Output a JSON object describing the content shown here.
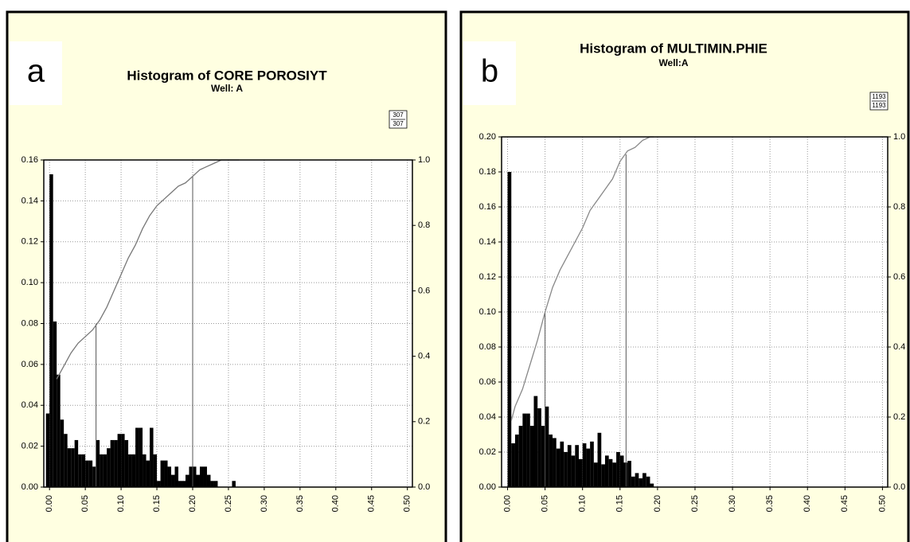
{
  "chart_data": [
    {
      "type": "histogram",
      "panel_label": "a",
      "title": "Histogram of CORE POROSIYT",
      "subtitle": "Well: A",
      "count_labels": [
        "307",
        "307"
      ],
      "bins": [
        -0.005,
        0,
        0.005,
        0.01,
        0.015,
        0.02,
        0.025,
        0.03,
        0.035,
        0.04,
        0.045,
        0.05,
        0.055,
        0.06,
        0.065,
        0.07,
        0.075,
        0.08,
        0.085,
        0.09,
        0.095,
        0.1,
        0.105,
        0.11,
        0.115,
        0.12,
        0.125,
        0.13,
        0.135,
        0.14,
        0.145,
        0.15,
        0.155,
        0.16,
        0.165,
        0.17,
        0.175,
        0.18,
        0.185,
        0.19,
        0.195,
        0.2,
        0.205,
        0.21,
        0.215,
        0.22,
        0.225,
        0.23,
        0.235,
        0.24,
        0.245,
        0.25,
        0.255,
        0.26,
        0.265
      ],
      "counts": [
        0.036,
        0.153,
        0.081,
        0.055,
        0.033,
        0.026,
        0.019,
        0.019,
        0.023,
        0.016,
        0.016,
        0.013,
        0.013,
        0.01,
        0.023,
        0.016,
        0.016,
        0.019,
        0.023,
        0.023,
        0.026,
        0.026,
        0.023,
        0.016,
        0.016,
        0.029,
        0.029,
        0.016,
        0.013,
        0.029,
        0.016,
        0.003,
        0.013,
        0.013,
        0.01,
        0.006,
        0.01,
        0.003,
        0.003,
        0.006,
        0.01,
        0.01,
        0.006,
        0.01,
        0.01,
        0.006,
        0.003,
        0.003,
        0,
        0,
        0,
        0,
        0.003,
        0
      ],
      "color": "#000000",
      "xlim": [
        -0.008,
        0.507
      ],
      "xticks": [
        {
          "value": 0,
          "label": "0.00"
        },
        0.05,
        {
          "value": 0.1,
          "label": "0.10"
        },
        0.15,
        {
          "value": 0.2,
          "label": "0.20"
        },
        0.25,
        {
          "value": 0.3,
          "label": "0.30"
        },
        0.35,
        {
          "value": 0.4,
          "label": "0.40"
        },
        0.45,
        {
          "value": 0.5,
          "label": "0.50"
        }
      ],
      "ylim": [
        0,
        0.16
      ],
      "yticks": [
        {
          "value": 0,
          "label": "0.00"
        },
        0.02,
        0.04,
        0.06,
        0.08,
        {
          "value": 0.1,
          "label": "0.10"
        },
        0.12,
        0.14,
        0.16
      ],
      "y2lim": [
        0,
        1
      ],
      "y2ticks": [
        {
          "value": 0,
          "label": "0.0"
        },
        0.2,
        0.4,
        0.6,
        0.8,
        {
          "value": 1,
          "label": "1.0"
        }
      ],
      "grid": true,
      "cumulative": {
        "axis": "y2",
        "color": "#777777",
        "x": [
          0.01,
          0.02,
          0.03,
          0.04,
          0.05,
          0.06,
          0.07,
          0.08,
          0.09,
          0.1,
          0.11,
          0.12,
          0.13,
          0.14,
          0.15,
          0.16,
          0.17,
          0.18,
          0.19,
          0.2,
          0.21,
          0.22,
          0.23,
          0.24,
          0.25,
          0.265
        ],
        "values": [
          0.33,
          0.37,
          0.41,
          0.44,
          0.46,
          0.48,
          0.51,
          0.55,
          0.6,
          0.65,
          0.7,
          0.74,
          0.79,
          0.83,
          0.86,
          0.88,
          0.9,
          0.92,
          0.93,
          0.95,
          0.97,
          0.98,
          0.99,
          1,
          1,
          1
        ]
      },
      "reference_lines": [
        {
          "x": 0.065,
          "y2": 0.5
        },
        {
          "x": 0.2,
          "y2": 0.95
        }
      ]
    },
    {
      "type": "histogram",
      "panel_label": "b",
      "title": "Histogram of MULTIMIN.PHIE",
      "subtitle": "Well:A",
      "count_labels": [
        "1193",
        "1193"
      ],
      "bins": [
        0,
        0.005,
        0.01,
        0.015,
        0.02,
        0.025,
        0.03,
        0.035,
        0.04,
        0.045,
        0.05,
        0.055,
        0.06,
        0.065,
        0.07,
        0.075,
        0.08,
        0.085,
        0.09,
        0.095,
        0.1,
        0.105,
        0.11,
        0.115,
        0.12,
        0.125,
        0.13,
        0.135,
        0.14,
        0.145,
        0.15,
        0.155,
        0.16,
        0.165,
        0.17,
        0.175,
        0.18,
        0.185,
        0.19,
        0.195
      ],
      "counts": [
        0.18,
        0.025,
        0.03,
        0.035,
        0.042,
        0.042,
        0.035,
        0.052,
        0.045,
        0.035,
        0.046,
        0.03,
        0.028,
        0.022,
        0.026,
        0.02,
        0.024,
        0.018,
        0.024,
        0.016,
        0.025,
        0.022,
        0.026,
        0.014,
        0.031,
        0.013,
        0.018,
        0.016,
        0.014,
        0.02,
        0.018,
        0.014,
        0.015,
        0.006,
        0.008,
        0.005,
        0.008,
        0.006,
        0.002
      ],
      "color": "#000000",
      "xlim": [
        -0.008,
        0.507
      ],
      "xticks": [
        {
          "value": 0,
          "label": "0.00"
        },
        0.05,
        {
          "value": 0.1,
          "label": "0.10"
        },
        0.15,
        {
          "value": 0.2,
          "label": "0.20"
        },
        0.25,
        {
          "value": 0.3,
          "label": "0.30"
        },
        0.35,
        {
          "value": 0.4,
          "label": "0.40"
        },
        0.45,
        {
          "value": 0.5,
          "label": "0.50"
        }
      ],
      "ylim": [
        0,
        0.2
      ],
      "yticks": [
        {
          "value": 0,
          "label": "0.00"
        },
        0.02,
        0.04,
        0.06,
        0.08,
        {
          "value": 0.1,
          "label": "0.10"
        },
        0.12,
        0.14,
        0.16,
        0.18,
        {
          "value": 0.2,
          "label": "0.20"
        }
      ],
      "y2lim": [
        0,
        1
      ],
      "y2ticks": [
        {
          "value": 0,
          "label": "0.0"
        },
        0.2,
        0.4,
        0.6,
        0.8,
        {
          "value": 1,
          "label": "1.0"
        }
      ],
      "grid": true,
      "cumulative": {
        "axis": "y2",
        "color": "#888888",
        "x": [
          0.005,
          0.01,
          0.02,
          0.03,
          0.04,
          0.05,
          0.06,
          0.07,
          0.08,
          0.09,
          0.1,
          0.11,
          0.12,
          0.13,
          0.14,
          0.15,
          0.16,
          0.17,
          0.18,
          0.19,
          0.195
        ],
        "values": [
          0.19,
          0.23,
          0.28,
          0.35,
          0.42,
          0.5,
          0.57,
          0.62,
          0.66,
          0.7,
          0.74,
          0.79,
          0.82,
          0.85,
          0.88,
          0.93,
          0.96,
          0.97,
          0.99,
          1,
          1
        ]
      },
      "reference_lines": [
        {
          "x": 0.05,
          "y2": 0.5
        },
        {
          "x": 0.158,
          "y2": 0.95
        }
      ]
    }
  ]
}
